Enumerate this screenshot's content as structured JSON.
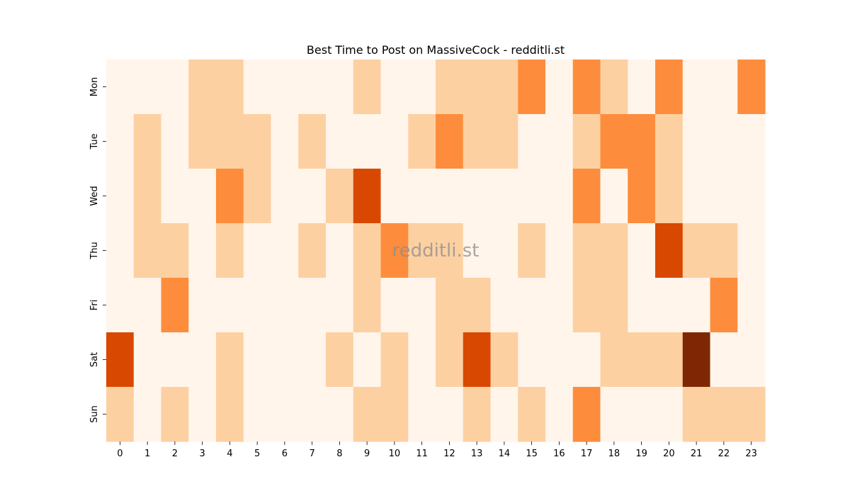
{
  "chart_data": {
    "type": "heatmap",
    "title": "Best Time to Post on MassiveCock - redditli.st",
    "xlabel": "",
    "ylabel": "",
    "x": [
      "0",
      "1",
      "2",
      "3",
      "4",
      "5",
      "6",
      "7",
      "8",
      "9",
      "10",
      "11",
      "12",
      "13",
      "14",
      "15",
      "16",
      "17",
      "18",
      "19",
      "20",
      "21",
      "22",
      "23"
    ],
    "y": [
      "Mon",
      "Tue",
      "Wed",
      "Thu",
      "Fri",
      "Sat",
      "Sun"
    ],
    "values": [
      [
        0,
        0,
        0,
        1,
        1,
        0,
        0,
        0,
        0,
        1,
        0,
        0,
        1,
        1,
        1,
        2,
        0,
        2,
        1,
        0,
        2,
        0,
        0,
        2
      ],
      [
        0,
        1,
        0,
        1,
        1,
        1,
        0,
        1,
        0,
        0,
        0,
        1,
        2,
        1,
        1,
        0,
        0,
        1,
        2,
        2,
        1,
        0,
        0,
        0
      ],
      [
        0,
        1,
        0,
        0,
        2,
        1,
        0,
        0,
        1,
        3,
        0,
        0,
        0,
        0,
        0,
        0,
        0,
        2,
        0,
        2,
        1,
        0,
        0,
        0
      ],
      [
        0,
        1,
        1,
        0,
        1,
        0,
        0,
        1,
        0,
        1,
        2,
        1,
        1,
        0,
        0,
        1,
        0,
        1,
        1,
        0,
        3,
        1,
        1,
        0
      ],
      [
        0,
        0,
        2,
        0,
        0,
        0,
        0,
        0,
        0,
        1,
        0,
        0,
        1,
        1,
        0,
        0,
        0,
        1,
        1,
        0,
        0,
        0,
        2,
        0
      ],
      [
        3,
        0,
        0,
        0,
        1,
        0,
        0,
        0,
        1,
        0,
        1,
        0,
        1,
        3,
        1,
        0,
        0,
        0,
        1,
        1,
        1,
        4,
        0,
        0
      ],
      [
        1,
        0,
        1,
        0,
        1,
        0,
        0,
        0,
        0,
        1,
        1,
        0,
        0,
        1,
        0,
        1,
        0,
        2,
        0,
        0,
        0,
        1,
        1,
        1
      ]
    ],
    "colormap": [
      "#fff5eb",
      "#fdd0a2",
      "#fd8d3c",
      "#d94801",
      "#7f2704"
    ],
    "colorbar": false,
    "grid": false,
    "legend": "none"
  },
  "watermark": "redditli.st"
}
